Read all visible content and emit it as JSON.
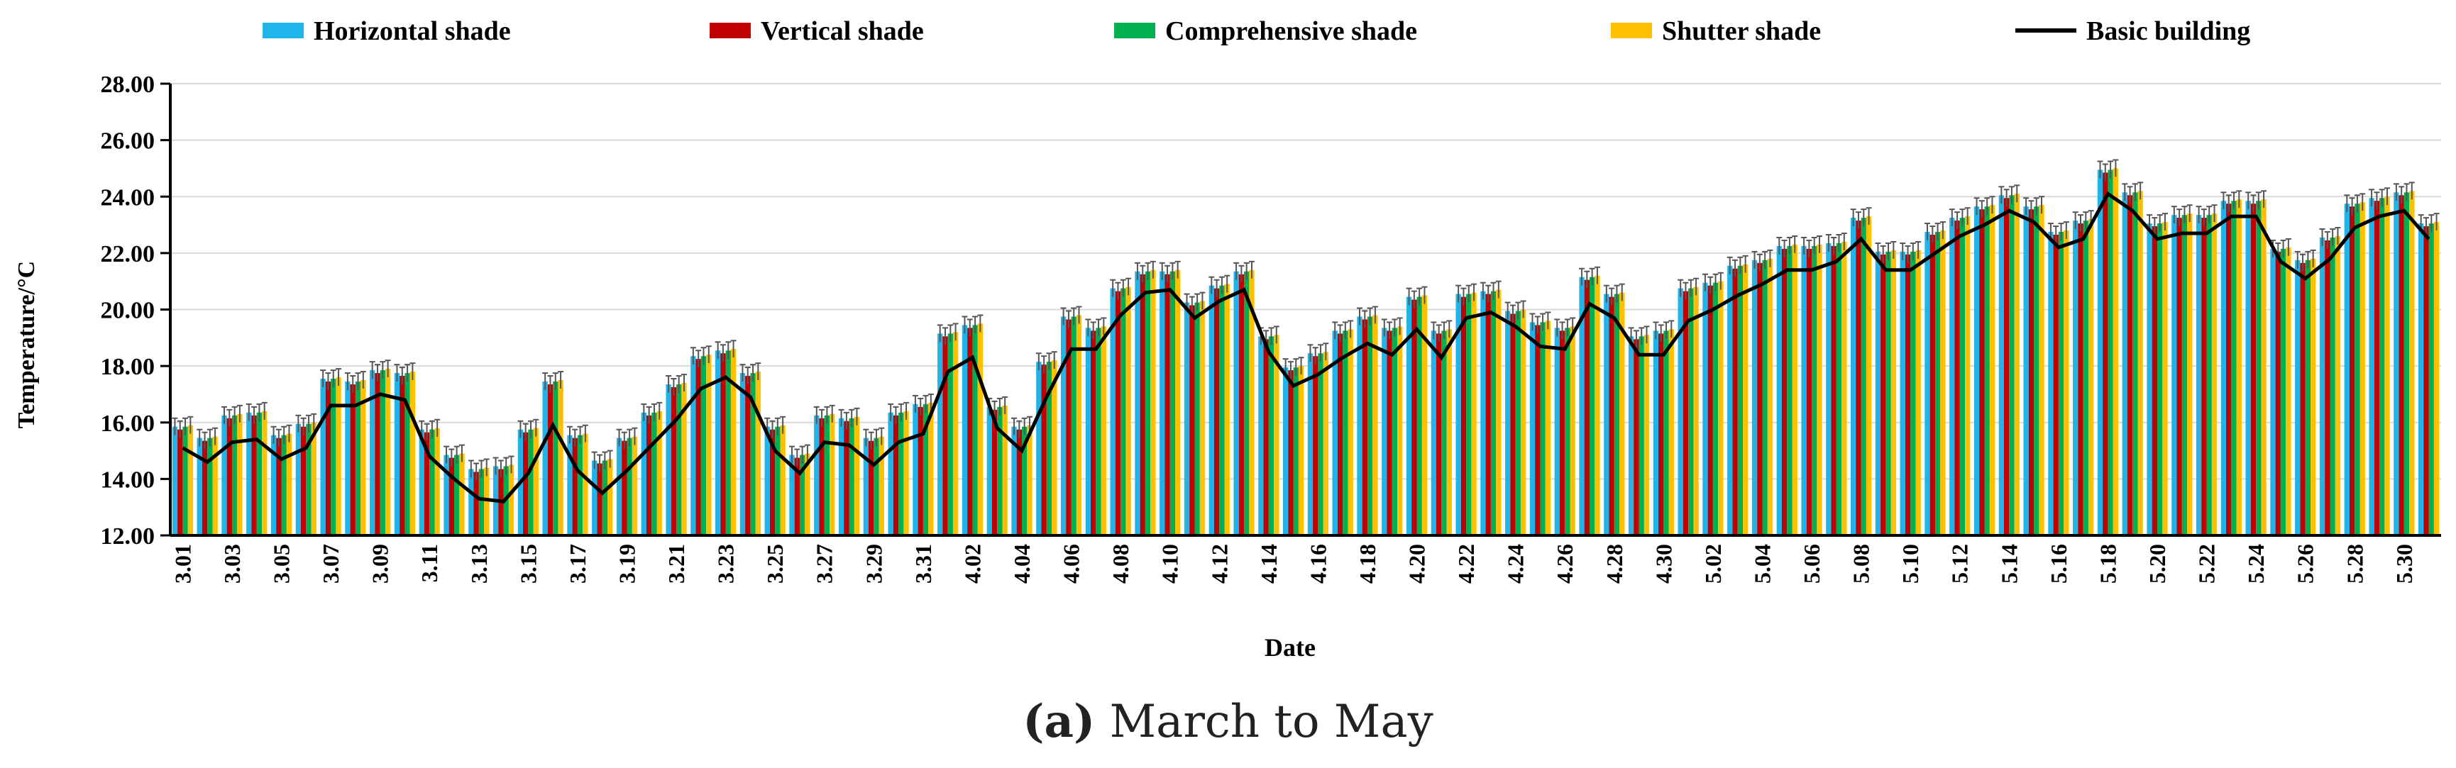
{
  "chart_data": {
    "type": "bar",
    "xlabel": "Date",
    "ylabel": "Temperature/°C",
    "ylim": [
      12,
      28
    ],
    "yticks": [
      "12.00",
      "14.00",
      "16.00",
      "18.00",
      "20.00",
      "22.00",
      "24.00",
      "26.00",
      "28.00"
    ],
    "grid": true,
    "legend_position": "top",
    "colors": {
      "Horizontal shade": "#1fb5ea",
      "Vertical shade": "#c00000",
      "Comprehensive shade": "#00b050",
      "Shutter shade": "#ffc000",
      "Basic building": "#000000"
    },
    "x": [
      "3.01",
      "3.02",
      "3.03",
      "3.04",
      "3.05",
      "3.06",
      "3.07",
      "3.08",
      "3.09",
      "3.10",
      "3.11",
      "3.12",
      "3.13",
      "3.14",
      "3.15",
      "3.16",
      "3.17",
      "3.18",
      "3.19",
      "3.20",
      "3.21",
      "3.22",
      "3.23",
      "3.24",
      "3.25",
      "3.26",
      "3.27",
      "3.28",
      "3.29",
      "3.30",
      "3.31",
      "4.01",
      "4.02",
      "4.03",
      "4.04",
      "4.05",
      "4.06",
      "4.07",
      "4.08",
      "4.09",
      "4.10",
      "4.11",
      "4.12",
      "4.13",
      "4.14",
      "4.15",
      "4.16",
      "4.17",
      "4.18",
      "4.19",
      "4.20",
      "4.21",
      "4.22",
      "4.23",
      "4.24",
      "4.25",
      "4.26",
      "4.27",
      "4.28",
      "4.29",
      "4.30",
      "5.01",
      "5.02",
      "5.03",
      "5.04",
      "5.05",
      "5.06",
      "5.07",
      "5.08",
      "5.09",
      "5.10",
      "5.11",
      "5.12",
      "5.13",
      "5.14",
      "5.15",
      "5.16",
      "5.17",
      "5.18",
      "5.19",
      "5.20",
      "5.21",
      "5.22",
      "5.23",
      "5.24",
      "5.25",
      "5.26",
      "5.27",
      "5.28",
      "5.29",
      "5.30",
      "5.31"
    ],
    "xtick_labels": [
      "3.01",
      "3.03",
      "3.05",
      "3.07",
      "3.09",
      "3.11",
      "3.13",
      "3.15",
      "3.17",
      "3.19",
      "3.21",
      "3.23",
      "3.25",
      "3.27",
      "3.29",
      "3.31",
      "4.02",
      "4.04",
      "4.06",
      "4.08",
      "4.10",
      "4.12",
      "4.14",
      "4.16",
      "4.18",
      "4.20",
      "4.22",
      "4.24",
      "4.26",
      "4.28",
      "4.30",
      "5.02",
      "5.04",
      "5.06",
      "5.08",
      "5.10",
      "5.12",
      "5.14",
      "5.16",
      "5.18",
      "5.20",
      "5.22",
      "5.24",
      "5.26",
      "5.28",
      "5.30"
    ],
    "bar_series": [
      "Horizontal shade",
      "Vertical shade",
      "Comprehensive shade",
      "Shutter shade"
    ],
    "bar_values": [
      15.9,
      15.5,
      16.3,
      16.4,
      15.6,
      16.0,
      17.6,
      17.5,
      17.9,
      17.8,
      15.8,
      14.9,
      14.4,
      14.5,
      15.8,
      17.5,
      15.6,
      14.7,
      15.5,
      16.4,
      17.4,
      18.4,
      18.6,
      17.8,
      15.9,
      14.9,
      16.3,
      16.2,
      15.5,
      16.4,
      16.7,
      19.2,
      19.5,
      16.6,
      15.9,
      18.2,
      19.8,
      19.4,
      20.8,
      21.4,
      21.4,
      20.3,
      20.9,
      21.4,
      19.1,
      18.0,
      18.5,
      19.3,
      19.8,
      19.4,
      20.5,
      19.3,
      20.6,
      20.7,
      20.0,
      19.6,
      19.4,
      21.2,
      20.6,
      19.1,
      19.3,
      20.8,
      21.0,
      21.6,
      21.8,
      22.3,
      22.3,
      22.4,
      23.3,
      22.1,
      22.1,
      22.8,
      23.3,
      23.7,
      24.1,
      23.7,
      22.8,
      23.2,
      25.0,
      24.2,
      23.1,
      23.4,
      23.4,
      23.9,
      23.9,
      22.2,
      21.8,
      22.6,
      23.8,
      24.0,
      24.2,
      23.1
    ],
    "line_series": {
      "name": "Basic building",
      "values": [
        15.1,
        14.6,
        15.3,
        15.4,
        14.7,
        15.1,
        16.6,
        16.6,
        17.0,
        16.8,
        14.8,
        14.0,
        13.3,
        13.2,
        14.2,
        15.9,
        14.3,
        13.5,
        14.3,
        15.2,
        16.1,
        17.2,
        17.6,
        16.9,
        15.0,
        14.2,
        15.3,
        15.2,
        14.5,
        15.3,
        15.6,
        17.8,
        18.3,
        15.8,
        15.0,
        16.9,
        18.6,
        18.6,
        19.8,
        20.6,
        20.7,
        19.7,
        20.3,
        20.7,
        18.5,
        17.3,
        17.7,
        18.3,
        18.8,
        18.4,
        19.3,
        18.3,
        19.7,
        19.9,
        19.4,
        18.7,
        18.6,
        20.2,
        19.7,
        18.4,
        18.4,
        19.6,
        20.0,
        20.5,
        20.9,
        21.4,
        21.4,
        21.7,
        22.5,
        21.4,
        21.4,
        22.0,
        22.6,
        23.0,
        23.5,
        23.1,
        22.2,
        22.5,
        24.1,
        23.5,
        22.5,
        22.7,
        22.7,
        23.3,
        23.3,
        21.7,
        21.1,
        21.8,
        22.9,
        23.3,
        23.5,
        22.5
      ]
    }
  },
  "caption": {
    "label": "(a)",
    "text": " March to May"
  }
}
